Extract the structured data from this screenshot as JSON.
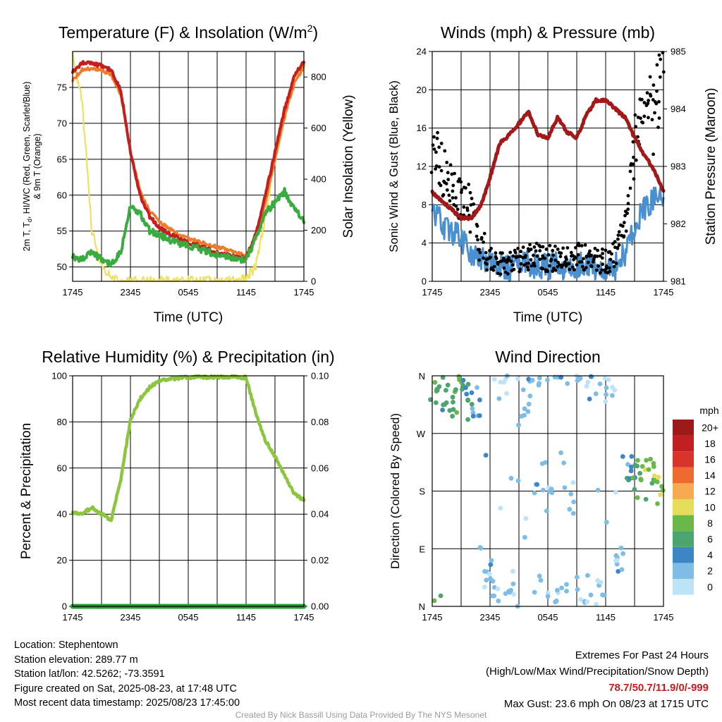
{
  "time_ticks": [
    "1745",
    "2345",
    "0545",
    "1145",
    "1745"
  ],
  "chart_data": [
    {
      "type": "line",
      "title": "Temperature (F) & Insolation (W/m²)",
      "xlabel": "Time (UTC)",
      "ylabel": "2m T, Td, HI/WC (Red, Green, Scarlet/Blue) & 9m T (Orange)",
      "ylabel_line1": "2m T, T",
      "ylabel_sub": "d",
      "ylabel_rest": ", HI/WC (Red, Green, Scarlet/Blue)",
      "ylabel_line2": "& 9m T (Orange)",
      "y2label": "Solar Insolation (Yellow)",
      "ylim": [
        48,
        80
      ],
      "yticks": [
        50,
        55,
        60,
        65,
        70,
        75
      ],
      "y2lim": [
        0,
        900
      ],
      "y2ticks": [
        0,
        200,
        400,
        600,
        800
      ],
      "x": [
        "1745",
        "1845",
        "1945",
        "2045",
        "2145",
        "2245",
        "2345",
        "0045",
        "0145",
        "0245",
        "0345",
        "0445",
        "0545",
        "0645",
        "0745",
        "0845",
        "0945",
        "1045",
        "1145",
        "1245",
        "1345",
        "1445",
        "1545",
        "1645",
        "1745"
      ],
      "series": [
        {
          "color": "#c41e1e",
          "axis": "left",
          "values": [
            77.2,
            78.4,
            78.3,
            78.0,
            77.5,
            74.5,
            66.0,
            60.0,
            57.0,
            55.5,
            54.6,
            54.0,
            53.4,
            53.0,
            52.5,
            52.0,
            51.7,
            51.4,
            51.3,
            54.5,
            60.0,
            66.0,
            72.0,
            76.5,
            78.7
          ]
        },
        {
          "color": "#f07a2a",
          "axis": "left",
          "values": [
            76.0,
            77.5,
            77.6,
            77.4,
            76.8,
            74.0,
            66.0,
            60.5,
            57.8,
            56.3,
            55.3,
            54.6,
            54.0,
            53.6,
            53.2,
            52.8,
            52.4,
            52.0,
            51.6,
            54.0,
            59.0,
            65.0,
            71.0,
            75.5,
            78.0
          ]
        },
        {
          "color": "#3aab3e",
          "axis": "left",
          "values": [
            51.5,
            51.0,
            52.0,
            51.0,
            50.5,
            52.0,
            58.5,
            57.5,
            55.0,
            54.5,
            53.8,
            53.3,
            53.0,
            52.6,
            52.1,
            51.7,
            51.4,
            51.1,
            51.0,
            54.0,
            57.5,
            59.0,
            60.5,
            58.0,
            56.5
          ]
        },
        {
          "color": "#f0e060",
          "axis": "right",
          "values": [
            880,
            700,
            190,
            60,
            10,
            0,
            0,
            0,
            0,
            0,
            0,
            0,
            0,
            0,
            0,
            0,
            0,
            0,
            10,
            60,
            250,
            480,
            640,
            780,
            860
          ]
        }
      ]
    },
    {
      "type": "line",
      "title": "Winds (mph) & Pressure (mb)",
      "xlabel": "Time (UTC)",
      "ylabel": "Sonic Wind & Gust (Blue, Black)",
      "y2label": "Station Pressure (Maroon)",
      "ylim": [
        0,
        24
      ],
      "yticks": [
        0,
        4,
        8,
        12,
        16,
        20,
        24
      ],
      "y2lim": [
        981,
        985
      ],
      "y2ticks": [
        981,
        982,
        983,
        984,
        985
      ],
      "x": [
        "1745",
        "1845",
        "1945",
        "2045",
        "2145",
        "2245",
        "2345",
        "0045",
        "0145",
        "0245",
        "0345",
        "0445",
        "0545",
        "0645",
        "0745",
        "0845",
        "0945",
        "1045",
        "1145",
        "1245",
        "1345",
        "1445",
        "1545",
        "1645",
        "1745"
      ],
      "series": [
        {
          "color": "#4a90d0",
          "axis": "left",
          "values": [
            7.5,
            6.0,
            5.0,
            4.5,
            3.0,
            2.5,
            1.8,
            1.5,
            1.3,
            1.5,
            1.8,
            1.7,
            1.5,
            1.8,
            1.4,
            1.6,
            1.7,
            1.5,
            1.4,
            1.5,
            3.0,
            6.0,
            7.5,
            8.5,
            9.0
          ]
        },
        {
          "color": "#000000",
          "axis": "left",
          "values": [
            13.5,
            11.5,
            10.5,
            9.0,
            7.0,
            4.0,
            2.5,
            2.0,
            2.0,
            2.3,
            2.5,
            2.6,
            2.4,
            2.5,
            2.3,
            2.6,
            2.4,
            2.2,
            2.0,
            3.0,
            6.0,
            14.0,
            19.0,
            17.0,
            23.6
          ]
        },
        {
          "color": "#a31919",
          "axis": "right",
          "values": [
            982.55,
            982.4,
            982.25,
            982.1,
            982.1,
            982.3,
            982.8,
            983.4,
            983.55,
            983.75,
            983.95,
            983.55,
            983.5,
            983.85,
            983.6,
            983.5,
            983.9,
            984.15,
            984.15,
            984.0,
            983.85,
            983.5,
            983.2,
            982.95,
            982.55
          ]
        }
      ]
    },
    {
      "type": "line",
      "title": "Relative Humidity (%) & Precipitation (in)",
      "xlabel": "",
      "ylabel": "Percent & Precipitation",
      "ylim": [
        0,
        100
      ],
      "yticks": [
        0,
        20,
        40,
        60,
        80,
        100
      ],
      "y2lim": [
        0,
        0.1
      ],
      "y2ticks": [
        "0.00",
        "0.02",
        "0.04",
        "0.06",
        "0.08",
        "0.10"
      ],
      "x": [
        "1745",
        "1845",
        "1945",
        "2045",
        "2145",
        "2245",
        "2345",
        "0045",
        "0145",
        "0245",
        "0345",
        "0445",
        "0545",
        "0645",
        "0745",
        "0845",
        "0945",
        "1045",
        "1145",
        "1245",
        "1345",
        "1445",
        "1545",
        "1645",
        "1745"
      ],
      "series": [
        {
          "color": "#8cc63f",
          "axis": "left",
          "values": [
            41.0,
            40.0,
            43.0,
            40.0,
            37.5,
            55.0,
            81.0,
            90.0,
            95.0,
            98.0,
            98.7,
            99.0,
            99.3,
            99.5,
            99.5,
            99.6,
            99.6,
            99.6,
            99.2,
            84.0,
            72.0,
            65.0,
            57.0,
            49.0,
            46.0
          ]
        },
        {
          "color": "#2e9e3a",
          "axis": "right",
          "values": [
            0,
            0,
            0,
            0,
            0,
            0,
            0,
            0,
            0,
            0,
            0,
            0,
            0,
            0,
            0,
            0,
            0,
            0,
            0,
            0,
            0,
            0,
            0,
            0,
            0
          ]
        }
      ]
    },
    {
      "type": "scatter",
      "title": "Wind Direction",
      "xlabel": "",
      "ylabel": "Direction (Colored By Speed)",
      "yticks": [
        "N",
        "E",
        "S",
        "W",
        "N"
      ],
      "ylim_degrees": [
        0,
        360
      ],
      "legend_title": "mph",
      "legend_labels": [
        "0",
        "2",
        "4",
        "6",
        "8",
        "10",
        "12",
        "14",
        "16",
        "18",
        "20+"
      ],
      "legend_colors": [
        "#bde4f6",
        "#7dbde6",
        "#3d86c6",
        "#4aa66e",
        "#6ab84a",
        "#e6de5a",
        "#f7aa52",
        "#ef6a2e",
        "#d9342b",
        "#c11f21",
        "#9c1a1a"
      ],
      "x": [
        "1745",
        "1845",
        "1945",
        "2045",
        "2145",
        "2245",
        "2345",
        "0045",
        "0145",
        "0245",
        "0345",
        "0445",
        "0545",
        "0645",
        "0745",
        "0845",
        "0945",
        "1045",
        "1145",
        "1245",
        "1345",
        "1445",
        "1545",
        "1645",
        "1745"
      ],
      "direction_degrees": [
        345,
        335,
        330,
        325,
        310,
        60,
        20,
        355,
        30,
        310,
        350,
        20,
        355,
        30,
        350,
        20,
        355,
        20,
        330,
        70,
        210,
        200,
        195,
        195,
        200
      ],
      "speed_mph": [
        7,
        6,
        6,
        5,
        4,
        2,
        1.5,
        1.5,
        1.5,
        1.5,
        2,
        2,
        1.5,
        2,
        1.5,
        2,
        2,
        1.5,
        1.5,
        2,
        4,
        7,
        8,
        9,
        11
      ]
    }
  ],
  "info": {
    "location": "Location: Stephentown",
    "elevation": "Station elevation: 289.77 m",
    "latlon": "Station lat/lon: 42.5262; -73.3591",
    "created": "Figure created on Sat, 2025-08-23, at 17:48 UTC",
    "recent": "Most recent data timestamp: 2025/08/23 17:45:00"
  },
  "extremes": {
    "title": "Extremes For Past 24 Hours",
    "subtitle": "(High/Low/Max Wind/Precipitation/Snow Depth)",
    "values": "78.7/50.7/11.9/0/-999",
    "gust": "Max Gust: 23.6 mph On 08/23 at 1715 UTC"
  },
  "credit": "Created By Nick Bassill Using Data Provided By The NYS Mesonet"
}
